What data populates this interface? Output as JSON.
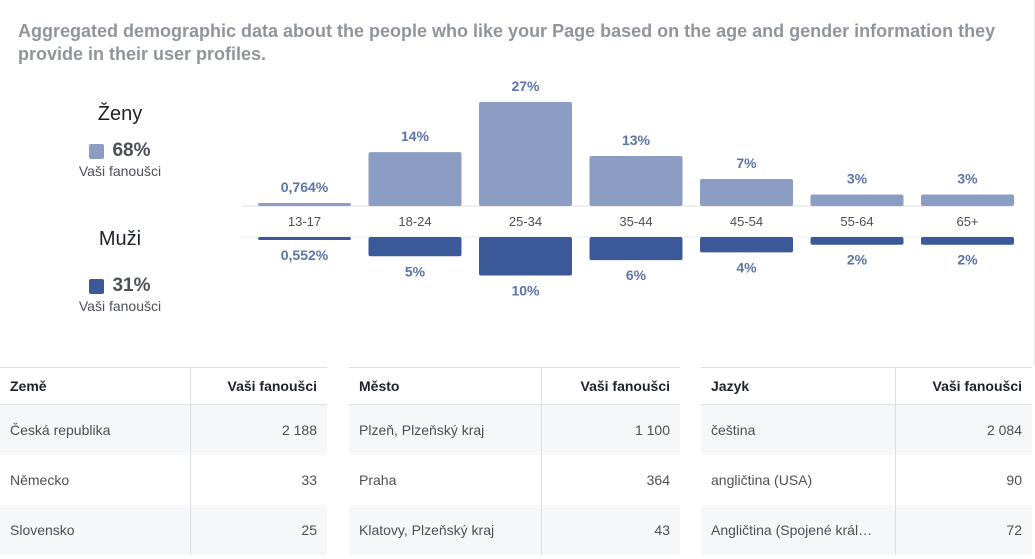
{
  "description": "Aggregated demographic data about the people who like your Page based on the age and gender information they provide in their user profiles.",
  "legend": {
    "women": {
      "label": "Ženy",
      "percent": "68%",
      "sub": "Vaši fanoušci",
      "color": "#8b9dc3"
    },
    "men": {
      "label": "Muži",
      "percent": "31%",
      "sub": "Vaši fanoušci",
      "color": "#3b5998"
    }
  },
  "chart_data": {
    "type": "bar",
    "categories": [
      "13-17",
      "18-24",
      "25-34",
      "35-44",
      "45-54",
      "55-64",
      "65+"
    ],
    "series": [
      {
        "name": "Ženy",
        "values": [
          0.764,
          14,
          27,
          13,
          7,
          3,
          3
        ],
        "labels": [
          "0,764%",
          "14%",
          "27%",
          "13%",
          "7%",
          "3%",
          "3%"
        ],
        "color": "#8b9dc3"
      },
      {
        "name": "Muži",
        "values": [
          0.552,
          5,
          10,
          6,
          4,
          2,
          2
        ],
        "labels": [
          "0,552%",
          "5%",
          "10%",
          "6%",
          "4%",
          "2%",
          "2%"
        ],
        "color": "#3b5998"
      }
    ]
  },
  "tables": [
    {
      "headers": [
        "Země",
        "Vaši fanoušci"
      ],
      "rows": [
        [
          "Česká republika",
          "2 188"
        ],
        [
          "Německo",
          "33"
        ],
        [
          "Slovensko",
          "25"
        ]
      ]
    },
    {
      "headers": [
        "Město",
        "Vaši fanoušci"
      ],
      "rows": [
        [
          "Plzeň, Plzeňský kraj",
          "1 100"
        ],
        [
          "Praha",
          "364"
        ],
        [
          "Klatovy, Plzeňský kraj",
          "43"
        ]
      ]
    },
    {
      "headers": [
        "Jazyk",
        "Vaši fanoušci"
      ],
      "rows": [
        [
          "čeština",
          "2 084"
        ],
        [
          "angličtina (USA)",
          "90"
        ],
        [
          "Angličtina (Spojené král…",
          "72"
        ]
      ]
    }
  ]
}
